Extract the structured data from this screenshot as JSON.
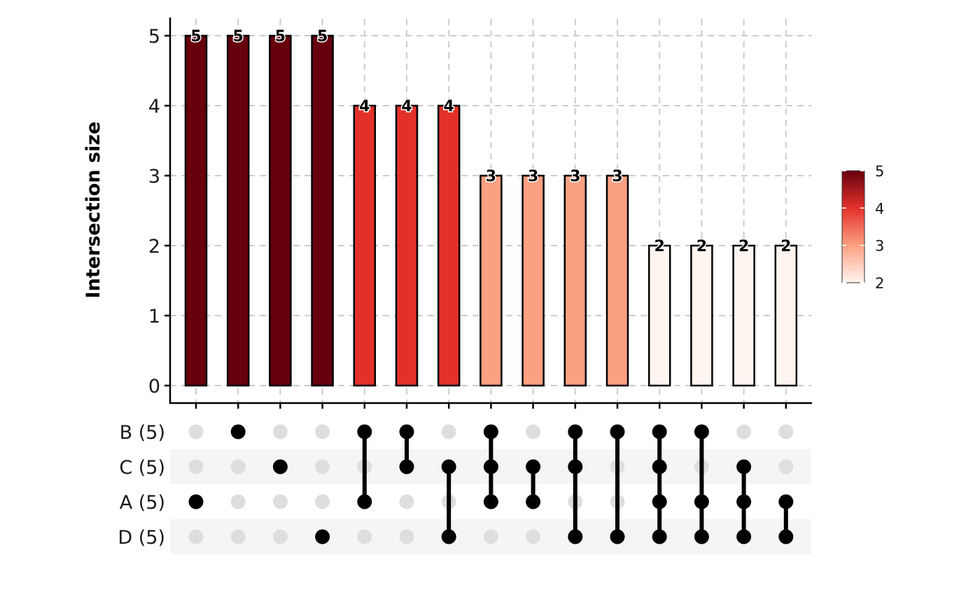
{
  "chart_data": {
    "type": "bar",
    "ylabel": "Intersection size",
    "ylim": [
      0,
      5
    ],
    "yticks": [
      "0",
      "1",
      "2",
      "3",
      "4",
      "5"
    ],
    "sets": [
      {
        "name": "B",
        "label": "B (5)"
      },
      {
        "name": "C",
        "label": "C (5)"
      },
      {
        "name": "A",
        "label": "A (5)"
      },
      {
        "name": "D",
        "label": "D (5)"
      }
    ],
    "intersections": [
      {
        "members": [
          "A"
        ],
        "value": 5,
        "label": "5"
      },
      {
        "members": [
          "B"
        ],
        "value": 5,
        "label": "5"
      },
      {
        "members": [
          "C"
        ],
        "value": 5,
        "label": "5"
      },
      {
        "members": [
          "D"
        ],
        "value": 5,
        "label": "5"
      },
      {
        "members": [
          "B",
          "A"
        ],
        "value": 4,
        "label": "4"
      },
      {
        "members": [
          "B",
          "C"
        ],
        "value": 4,
        "label": "4"
      },
      {
        "members": [
          "C",
          "D"
        ],
        "value": 4,
        "label": "4"
      },
      {
        "members": [
          "B",
          "C",
          "A"
        ],
        "value": 3,
        "label": "3"
      },
      {
        "members": [
          "C",
          "A"
        ],
        "value": 3,
        "label": "3"
      },
      {
        "members": [
          "B",
          "C",
          "D"
        ],
        "value": 3,
        "label": "3"
      },
      {
        "members": [
          "B",
          "D"
        ],
        "value": 3,
        "label": "3"
      },
      {
        "members": [
          "B",
          "C",
          "A",
          "D"
        ],
        "value": 2,
        "label": "2"
      },
      {
        "members": [
          "B",
          "A",
          "D"
        ],
        "value": 2,
        "label": "2"
      },
      {
        "members": [
          "C",
          "A",
          "D"
        ],
        "value": 2,
        "label": "2"
      },
      {
        "members": [
          "A",
          "D"
        ],
        "value": 2,
        "label": "2"
      }
    ],
    "colorbar": {
      "ticks": [
        "2",
        "3",
        "4",
        "5"
      ],
      "range": [
        2,
        5
      ],
      "stops": [
        "#fff5f0",
        "#fca082",
        "#e3312a",
        "#67000d"
      ],
      "placement": "right"
    },
    "grid": true
  }
}
